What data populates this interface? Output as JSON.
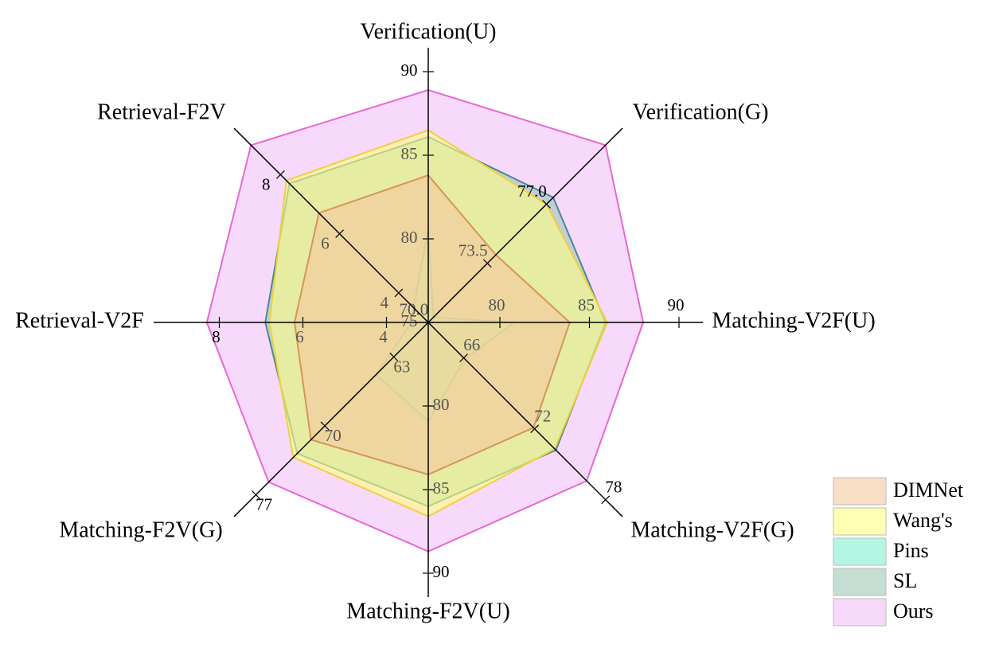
{
  "chart_data": {
    "type": "radar",
    "axes": [
      {
        "name": "Verification(U)",
        "lim": [
          75,
          90
        ],
        "ticks": [
          75,
          80,
          85,
          90
        ]
      },
      {
        "name": "Verification(G)",
        "lim": [
          70,
          80.5
        ],
        "ticks": [
          {
            "value": 70,
            "label": "70.0"
          },
          73.5,
          {
            "value": 77,
            "label": "77.0"
          }
        ]
      },
      {
        "name": "Matching-V2F(U)",
        "lim": [
          76,
          90
        ],
        "ticks": [
          80,
          85,
          90
        ]
      },
      {
        "name": "Matching-V2F(G)",
        "lim": [
          63,
          78
        ],
        "ticks": [
          66,
          72,
          78
        ]
      },
      {
        "name": "Matching-F2V(U)",
        "lim": [
          75,
          90
        ],
        "ticks": [
          80,
          85,
          90
        ]
      },
      {
        "name": "Matching-F2V(G)",
        "lim": [
          59.5,
          77.5
        ],
        "ticks": [
          63,
          70,
          77
        ]
      },
      {
        "name": "Retrieval-V2F",
        "lim": [
          3,
          9
        ],
        "ticks": [
          4,
          6,
          8
        ]
      },
      {
        "name": "Retrieval-F2V",
        "lim": [
          3,
          9
        ],
        "ticks": [
          4,
          6,
          8
        ]
      }
    ],
    "series": [
      {
        "name": "DIMNet",
        "color": "#f5c8a0",
        "edge": "#d4955a",
        "values": [
          83.8,
          74.0,
          83.9,
          71.9,
          84.1,
          71.4,
          6.2,
          6.7
        ]
      },
      {
        "name": "Wang's",
        "color": "#ffff80",
        "edge": "#f0d040",
        "values": [
          86.5,
          77.0,
          86.0,
          73.7,
          86.6,
          73.2,
          6.8,
          7.8
        ]
      },
      {
        "name": "Pins",
        "color": "#80f0d0",
        "edge": "#30b0a0",
        "values": [
          80.6,
          70.3,
          80.8,
          66.1,
          80.9,
          64.8,
          3.4,
          3.5
        ]
      },
      {
        "name": "SL",
        "color": "#9ec8b8",
        "edge": "#4a8a90",
        "values": [
          86.1,
          77.4,
          85.9,
          73.8,
          86.0,
          72.8,
          6.9,
          7.7
        ]
      },
      {
        "name": "Ours",
        "color": "#f0c0f8",
        "edge": "#e868d0",
        "values": [
          88.9,
          80.5,
          88.0,
          76.4,
          88.7,
          75.7,
          8.3,
          9.0
        ]
      }
    ]
  }
}
